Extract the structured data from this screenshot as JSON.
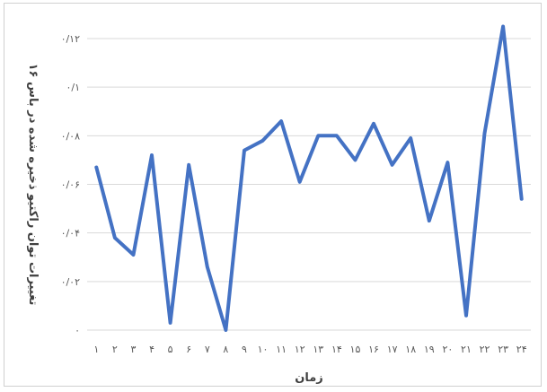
{
  "chart_data": {
    "type": "line",
    "title": "",
    "xlabel": "زمان",
    "ylabel": "تغییرات توان راکتیو ذخیره شده در باس ۱۶",
    "categories": [
      "۱",
      "۲",
      "۳",
      "۴",
      "۵",
      "۶",
      "۷",
      "۸",
      "۹",
      "۱۰",
      "۱۱",
      "۱۲",
      "۱۳",
      "۱۴",
      "۱۵",
      "۱۶",
      "۱۷",
      "۱۸",
      "۱۹",
      "۲۰",
      "۲۱",
      "۲۲",
      "۲۳",
      "۲۴"
    ],
    "y_tick_labels": [
      "۰",
      "۰/۰۲",
      "۰/۰۴",
      "۰/۰۶",
      "۰/۰۸",
      "۰/۱",
      "۰/۱۲"
    ],
    "ylim": [
      0,
      0.12
    ],
    "grid": true,
    "legend": "none",
    "series": [
      {
        "color": "#4472C4",
        "values": [
          0.067,
          0.038,
          0.031,
          0.072,
          0.003,
          0.068,
          0.026,
          0.0,
          0.074,
          0.078,
          0.086,
          0.061,
          0.08,
          0.08,
          0.07,
          0.085,
          0.068,
          0.079,
          0.045,
          0.069,
          0.006,
          0.081,
          0.125,
          0.054
        ]
      }
    ],
    "colors": {
      "gridline": "#d9d9d9",
      "tick_text": "#595959",
      "axis_title": "#404040"
    }
  }
}
